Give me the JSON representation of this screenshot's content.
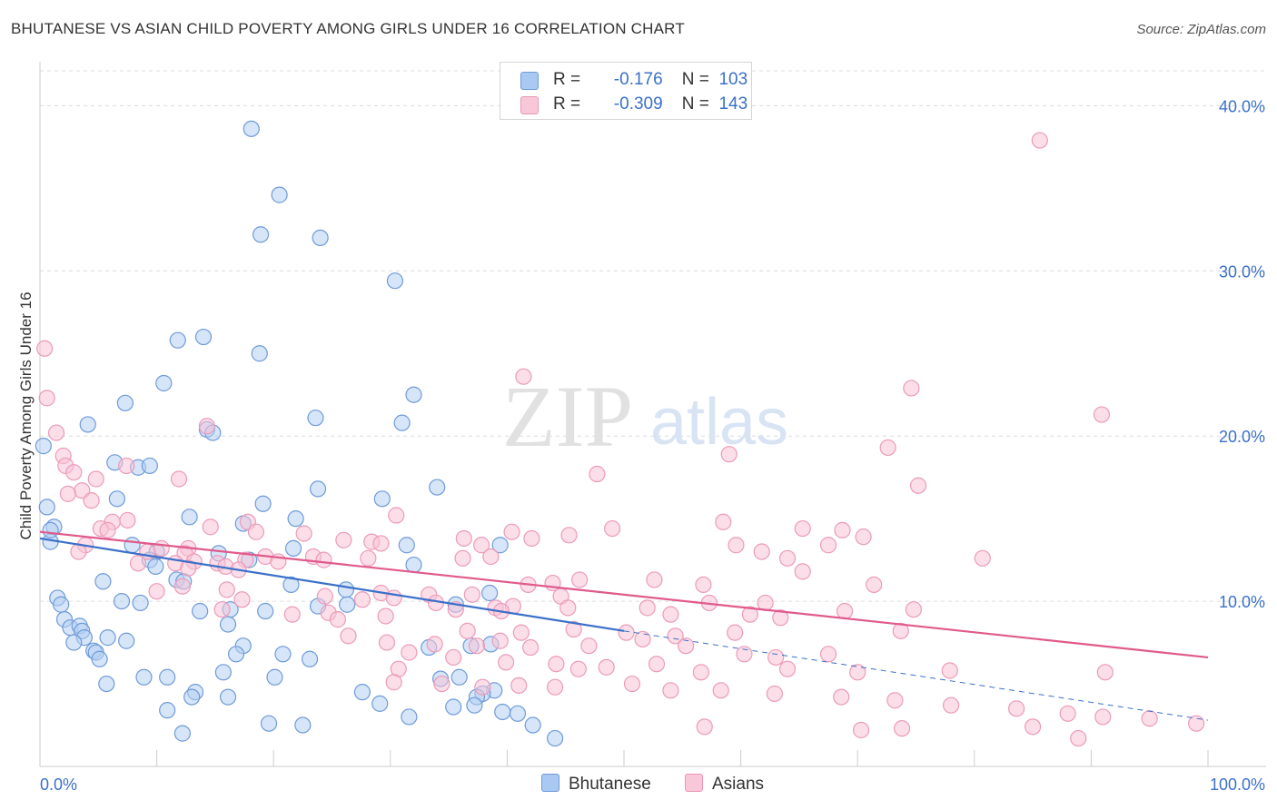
{
  "title": "BHUTANESE VS ASIAN CHILD POVERTY AMONG GIRLS UNDER 16 CORRELATION CHART",
  "source": "Source: ZipAtlas.com",
  "watermark": {
    "zip": "ZIP",
    "atlas": "atlas"
  },
  "legend": {
    "rows": [
      {
        "r_label": "R =",
        "r_value": "-0.176",
        "n_label": "N =",
        "n_value": "103",
        "color": "#a9c8f2"
      },
      {
        "r_label": "R =",
        "r_value": "-0.309",
        "n_label": "N =",
        "n_value": "143",
        "color": "#f5bcd0"
      }
    ]
  },
  "bottom_legend": [
    {
      "label": "Bhutanese",
      "color": "#a9c8f2"
    },
    {
      "label": "Asians",
      "color": "#f5bcd0"
    }
  ],
  "chart_data": {
    "type": "scatter",
    "title": "BHUTANESE VS ASIAN CHILD POVERTY AMONG GIRLS UNDER 16 CORRELATION CHART",
    "xlabel": "",
    "ylabel": "Child Poverty Among Girls Under 16",
    "xlim": [
      0,
      100
    ],
    "ylim": [
      0,
      40
    ],
    "x_tick_labels": [
      "0.0%",
      "100.0%"
    ],
    "y_ticks": [
      10,
      20,
      30,
      40
    ],
    "y_tick_labels": [
      "10.0%",
      "20.0%",
      "30.0%",
      "40.0%"
    ],
    "grid": "horizontal dashed",
    "legend_position": "top-center",
    "series": [
      {
        "name": "Bhutanese",
        "color": "#7aa7e6",
        "line_color": "#3b70c9",
        "trend": {
          "x0": 0,
          "y0": 13.8,
          "x1": 50,
          "y1": 8.2,
          "dashed_to": 100,
          "dashed_end_y": 2.8
        },
        "points": [
          [
            18.1,
            38.6
          ],
          [
            20.5,
            34.6
          ],
          [
            18.9,
            32.2
          ],
          [
            24.0,
            32.0
          ],
          [
            30.4,
            29.4
          ],
          [
            11.8,
            25.8
          ],
          [
            14.0,
            26.0
          ],
          [
            18.8,
            25.0
          ],
          [
            10.6,
            23.2
          ],
          [
            32.0,
            22.5
          ],
          [
            7.3,
            22.0
          ],
          [
            23.6,
            21.1
          ],
          [
            31.0,
            20.8
          ],
          [
            4.1,
            20.7
          ],
          [
            14.3,
            20.4
          ],
          [
            14.8,
            20.2
          ],
          [
            6.4,
            18.4
          ],
          [
            8.4,
            18.1
          ],
          [
            9.4,
            18.2
          ],
          [
            23.8,
            16.8
          ],
          [
            34.0,
            16.9
          ],
          [
            29.3,
            16.2
          ],
          [
            6.6,
            16.2
          ],
          [
            19.1,
            15.9
          ],
          [
            12.8,
            15.1
          ],
          [
            21.9,
            15.0
          ],
          [
            17.4,
            14.7
          ],
          [
            1.2,
            14.5
          ],
          [
            0.9,
            13.6
          ],
          [
            39.4,
            13.4
          ],
          [
            31.4,
            13.4
          ],
          [
            7.9,
            13.4
          ],
          [
            21.7,
            13.2
          ],
          [
            10.0,
            13.0
          ],
          [
            15.3,
            12.9
          ],
          [
            17.9,
            12.5
          ],
          [
            9.4,
            12.5
          ],
          [
            32.0,
            12.2
          ],
          [
            9.9,
            12.1
          ],
          [
            11.7,
            11.3
          ],
          [
            12.3,
            11.2
          ],
          [
            5.4,
            11.2
          ],
          [
            21.5,
            11.0
          ],
          [
            26.2,
            10.7
          ],
          [
            38.5,
            10.5
          ],
          [
            1.5,
            10.2
          ],
          [
            7.0,
            10.0
          ],
          [
            8.6,
            9.9
          ],
          [
            26.3,
            9.8
          ],
          [
            35.6,
            9.8
          ],
          [
            23.8,
            9.7
          ],
          [
            1.8,
            9.8
          ],
          [
            16.3,
            9.5
          ],
          [
            19.3,
            9.4
          ],
          [
            13.7,
            9.4
          ],
          [
            2.1,
            8.9
          ],
          [
            2.6,
            8.4
          ],
          [
            16.1,
            8.6
          ],
          [
            3.4,
            8.5
          ],
          [
            3.6,
            8.2
          ],
          [
            3.8,
            7.8
          ],
          [
            5.8,
            7.8
          ],
          [
            2.9,
            7.5
          ],
          [
            7.4,
            7.6
          ],
          [
            17.4,
            7.3
          ],
          [
            33.3,
            7.2
          ],
          [
            36.9,
            7.3
          ],
          [
            38.6,
            7.4
          ],
          [
            4.6,
            7.0
          ],
          [
            4.8,
            6.9
          ],
          [
            16.8,
            6.8
          ],
          [
            20.8,
            6.8
          ],
          [
            5.1,
            6.5
          ],
          [
            23.1,
            6.5
          ],
          [
            10.9,
            5.4
          ],
          [
            8.9,
            5.4
          ],
          [
            15.7,
            5.7
          ],
          [
            20.1,
            5.4
          ],
          [
            35.9,
            5.4
          ],
          [
            34.3,
            5.3
          ],
          [
            5.7,
            5.0
          ],
          [
            38.9,
            4.6
          ],
          [
            27.6,
            4.5
          ],
          [
            37.9,
            4.4
          ],
          [
            13.3,
            4.5
          ],
          [
            13.0,
            4.2
          ],
          [
            16.1,
            4.2
          ],
          [
            37.4,
            4.2
          ],
          [
            29.1,
            3.8
          ],
          [
            37.2,
            3.7
          ],
          [
            35.4,
            3.6
          ],
          [
            10.9,
            3.4
          ],
          [
            31.6,
            3.0
          ],
          [
            39.6,
            3.3
          ],
          [
            40.9,
            3.2
          ],
          [
            19.6,
            2.6
          ],
          [
            22.5,
            2.5
          ],
          [
            42.2,
            2.5
          ],
          [
            12.2,
            2.0
          ],
          [
            44.1,
            1.7
          ],
          [
            0.3,
            19.4
          ],
          [
            0.6,
            15.7
          ],
          [
            0.9,
            14.3
          ]
        ]
      },
      {
        "name": "Asians",
        "color": "#f09cb8",
        "line_color": "#e05a8a",
        "trend": {
          "x0": 0,
          "y0": 14.2,
          "x1": 100,
          "y1": 6.6
        },
        "points": [
          [
            85.6,
            37.9
          ],
          [
            41.4,
            23.6
          ],
          [
            74.6,
            22.9
          ],
          [
            0.6,
            22.3
          ],
          [
            0.4,
            25.3
          ],
          [
            90.9,
            21.3
          ],
          [
            14.3,
            20.6
          ],
          [
            1.4,
            20.2
          ],
          [
            72.6,
            19.3
          ],
          [
            59.0,
            18.9
          ],
          [
            2.0,
            18.8
          ],
          [
            2.2,
            18.2
          ],
          [
            2.9,
            17.8
          ],
          [
            7.4,
            18.2
          ],
          [
            47.7,
            17.7
          ],
          [
            11.9,
            17.4
          ],
          [
            4.8,
            17.4
          ],
          [
            3.6,
            16.7
          ],
          [
            2.4,
            16.5
          ],
          [
            4.4,
            16.1
          ],
          [
            75.2,
            17.0
          ],
          [
            6.2,
            14.8
          ],
          [
            30.5,
            15.2
          ],
          [
            7.5,
            14.9
          ],
          [
            14.6,
            14.5
          ],
          [
            49.0,
            14.4
          ],
          [
            5.2,
            14.4
          ],
          [
            5.8,
            14.3
          ],
          [
            17.8,
            14.8
          ],
          [
            58.5,
            14.8
          ],
          [
            65.3,
            14.4
          ],
          [
            68.7,
            14.3
          ],
          [
            18.5,
            14.2
          ],
          [
            22.6,
            14.1
          ],
          [
            40.4,
            14.2
          ],
          [
            42.1,
            13.8
          ],
          [
            45.3,
            14.0
          ],
          [
            70.5,
            13.9
          ],
          [
            36.3,
            13.8
          ],
          [
            26.0,
            13.7
          ],
          [
            28.4,
            13.6
          ],
          [
            29.2,
            13.5
          ],
          [
            59.6,
            13.4
          ],
          [
            37.8,
            13.4
          ],
          [
            61.8,
            13.0
          ],
          [
            67.5,
            13.4
          ],
          [
            3.9,
            13.4
          ],
          [
            10.4,
            13.2
          ],
          [
            12.7,
            13.2
          ],
          [
            3.3,
            13.0
          ],
          [
            9.2,
            13.0
          ],
          [
            12.4,
            12.9
          ],
          [
            38.6,
            12.7
          ],
          [
            19.3,
            12.7
          ],
          [
            23.4,
            12.7
          ],
          [
            28.1,
            12.6
          ],
          [
            36.2,
            12.6
          ],
          [
            64.0,
            12.6
          ],
          [
            80.7,
            12.6
          ],
          [
            24.3,
            12.5
          ],
          [
            17.6,
            12.5
          ],
          [
            13.2,
            12.4
          ],
          [
            20.4,
            12.4
          ],
          [
            15.2,
            12.3
          ],
          [
            8.4,
            12.3
          ],
          [
            11.6,
            12.3
          ],
          [
            15.9,
            12.1
          ],
          [
            12.7,
            12.0
          ],
          [
            17.0,
            11.9
          ],
          [
            41.8,
            11.0
          ],
          [
            43.9,
            11.1
          ],
          [
            46.2,
            11.3
          ],
          [
            52.6,
            11.3
          ],
          [
            56.8,
            11.0
          ],
          [
            65.3,
            11.8
          ],
          [
            71.4,
            11.0
          ],
          [
            12.2,
            10.9
          ],
          [
            16.0,
            10.7
          ],
          [
            29.2,
            10.5
          ],
          [
            33.3,
            10.4
          ],
          [
            37.0,
            10.4
          ],
          [
            44.6,
            10.3
          ],
          [
            10.0,
            10.6
          ],
          [
            17.3,
            10.1
          ],
          [
            24.4,
            10.3
          ],
          [
            27.6,
            10.1
          ],
          [
            30.3,
            10.2
          ],
          [
            33.9,
            9.9
          ],
          [
            39.0,
            9.6
          ],
          [
            40.5,
            9.7
          ],
          [
            45.2,
            9.6
          ],
          [
            52.0,
            9.6
          ],
          [
            57.3,
            9.9
          ],
          [
            62.1,
            9.9
          ],
          [
            15.6,
            9.5
          ],
          [
            21.6,
            9.2
          ],
          [
            24.7,
            9.3
          ],
          [
            29.6,
            9.1
          ],
          [
            35.6,
            9.5
          ],
          [
            39.5,
            9.4
          ],
          [
            54.0,
            9.2
          ],
          [
            60.8,
            9.2
          ],
          [
            63.4,
            9.0
          ],
          [
            68.9,
            9.4
          ],
          [
            74.8,
            9.5
          ],
          [
            25.5,
            8.9
          ],
          [
            36.6,
            8.2
          ],
          [
            41.2,
            8.1
          ],
          [
            45.7,
            8.3
          ],
          [
            50.2,
            8.1
          ],
          [
            54.4,
            7.9
          ],
          [
            59.5,
            8.1
          ],
          [
            73.7,
            8.2
          ],
          [
            26.4,
            7.9
          ],
          [
            29.7,
            7.5
          ],
          [
            33.8,
            7.4
          ],
          [
            37.4,
            7.3
          ],
          [
            39.4,
            7.6
          ],
          [
            42.0,
            7.2
          ],
          [
            47.0,
            7.3
          ],
          [
            51.6,
            7.7
          ],
          [
            55.3,
            7.3
          ],
          [
            60.3,
            6.8
          ],
          [
            63.0,
            6.6
          ],
          [
            67.5,
            6.8
          ],
          [
            31.6,
            6.9
          ],
          [
            35.4,
            6.6
          ],
          [
            39.9,
            6.3
          ],
          [
            44.2,
            6.2
          ],
          [
            48.5,
            6.0
          ],
          [
            52.8,
            6.2
          ],
          [
            30.7,
            5.9
          ],
          [
            46.1,
            5.9
          ],
          [
            56.6,
            5.7
          ],
          [
            64.0,
            5.9
          ],
          [
            70.0,
            5.7
          ],
          [
            77.9,
            5.8
          ],
          [
            91.2,
            5.7
          ],
          [
            30.3,
            5.1
          ],
          [
            34.4,
            5.0
          ],
          [
            37.9,
            4.8
          ],
          [
            41.0,
            4.9
          ],
          [
            44.1,
            4.8
          ],
          [
            50.7,
            5.0
          ],
          [
            54.0,
            4.6
          ],
          [
            58.3,
            4.6
          ],
          [
            62.9,
            4.4
          ],
          [
            68.6,
            4.2
          ],
          [
            73.2,
            4.0
          ],
          [
            78.0,
            3.7
          ],
          [
            83.6,
            3.5
          ],
          [
            88.0,
            3.2
          ],
          [
            91.0,
            3.0
          ],
          [
            95.0,
            2.9
          ],
          [
            99.0,
            2.6
          ],
          [
            56.9,
            2.4
          ],
          [
            70.3,
            2.2
          ],
          [
            73.8,
            2.3
          ],
          [
            85.0,
            2.4
          ],
          [
            88.9,
            1.7
          ]
        ]
      }
    ]
  }
}
